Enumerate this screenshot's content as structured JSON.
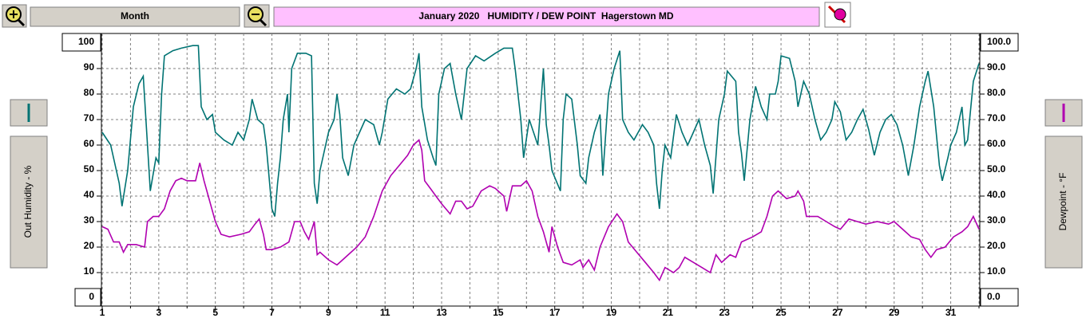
{
  "ui": {
    "range_button": "Month"
  },
  "chart_data": {
    "type": "line",
    "title": "January 2020   HUMIDITY / DEW POINT  Hagerstown MD",
    "y_label": "Out Humidity - %",
    "y2_label": "Dewpoint - °F",
    "xlim": [
      1,
      32
    ],
    "xticks": [
      1,
      3,
      5,
      7,
      9,
      11,
      13,
      15,
      17,
      19,
      21,
      23,
      25,
      27,
      29,
      31
    ],
    "x_minor_ticks": [
      2,
      4,
      6,
      8,
      10,
      12,
      14,
      16,
      18,
      20,
      22,
      24,
      26,
      28,
      30,
      32
    ],
    "ylim": [
      0,
      100
    ],
    "yticks": [
      0,
      10,
      20,
      30,
      40,
      50,
      60,
      70,
      80,
      90,
      100
    ],
    "y2lim": [
      0,
      100
    ],
    "y2ticks": [
      {
        "value": 0,
        "label": "0.0"
      },
      {
        "value": 10,
        "label": "10.0"
      },
      {
        "value": 20,
        "label": "20.0"
      },
      {
        "value": 30,
        "label": "30.0"
      },
      {
        "value": 40,
        "label": "40.0"
      },
      {
        "value": 50,
        "label": "50.0"
      },
      {
        "value": 60,
        "label": "60.0"
      },
      {
        "value": 70,
        "label": "70.0"
      },
      {
        "value": 80,
        "label": "80.0"
      },
      {
        "value": 90,
        "label": "90.0"
      },
      {
        "value": 100,
        "label": "100.0"
      }
    ],
    "grid": true,
    "series": [
      {
        "name": "Out Humidity",
        "color": "#007373",
        "axis": "y",
        "x": [
          1.0,
          1.3,
          1.6,
          1.7,
          1.9,
          2.1,
          2.3,
          2.45,
          2.6,
          2.7,
          2.9,
          3.0,
          3.1,
          3.2,
          3.5,
          3.8,
          4.2,
          4.4,
          4.5,
          4.7,
          4.9,
          5.0,
          5.3,
          5.6,
          5.8,
          6.0,
          6.2,
          6.3,
          6.5,
          6.7,
          6.8,
          7.0,
          7.1,
          7.2,
          7.3,
          7.4,
          7.55,
          7.6,
          7.7,
          7.9,
          8.2,
          8.4,
          8.5,
          8.6,
          8.7,
          8.9,
          9.0,
          9.2,
          9.3,
          9.4,
          9.5,
          9.7,
          9.9,
          10.1,
          10.3,
          10.6,
          10.8,
          10.9,
          11.1,
          11.4,
          11.7,
          11.9,
          12.1,
          12.2,
          12.3,
          12.5,
          12.7,
          12.8,
          12.9,
          13.1,
          13.3,
          13.5,
          13.7,
          13.9,
          14.2,
          14.5,
          14.9,
          15.2,
          15.5,
          15.6,
          15.8,
          15.9,
          16.1,
          16.4,
          16.6,
          16.7,
          16.8,
          16.9,
          17.2,
          17.3,
          17.4,
          17.6,
          17.8,
          17.9,
          18.1,
          18.2,
          18.4,
          18.6,
          18.7,
          18.9,
          19.1,
          19.3,
          19.4,
          19.6,
          19.8,
          20.1,
          20.3,
          20.5,
          20.6,
          20.7,
          20.8,
          20.9,
          21.1,
          21.3,
          21.5,
          21.7,
          21.9,
          22.1,
          22.3,
          22.5,
          22.6,
          22.8,
          23.0,
          23.1,
          23.4,
          23.5,
          23.6,
          23.7,
          23.9,
          24.1,
          24.3,
          24.5,
          24.6,
          24.8,
          24.9,
          25.0,
          25.3,
          25.5,
          25.6,
          25.8,
          26.0,
          26.2,
          26.4,
          26.6,
          26.8,
          26.9,
          27.1,
          27.3,
          27.5,
          27.7,
          27.9,
          28.1,
          28.3,
          28.5,
          28.7,
          28.9,
          29.1,
          29.3,
          29.5,
          29.7,
          29.9,
          30.1,
          30.2,
          30.4,
          30.6,
          30.7,
          30.9,
          31.0,
          31.2,
          31.4,
          31.5,
          31.6,
          31.8,
          32.0
        ],
        "values": [
          65,
          60,
          45,
          36,
          50,
          75,
          84,
          87,
          60,
          42,
          55,
          53,
          80,
          95,
          97,
          98,
          99,
          99,
          75,
          70,
          72,
          65,
          62,
          60,
          65,
          62,
          70,
          78,
          70,
          68,
          60,
          35,
          32,
          45,
          55,
          70,
          80,
          65,
          90,
          96,
          96,
          95,
          45,
          37,
          50,
          60,
          65,
          70,
          80,
          72,
          55,
          48,
          60,
          65,
          70,
          68,
          60,
          65,
          78,
          82,
          80,
          82,
          90,
          96,
          75,
          62,
          55,
          52,
          80,
          90,
          92,
          80,
          70,
          90,
          95,
          93,
          96,
          98,
          98,
          90,
          70,
          55,
          70,
          60,
          90,
          68,
          60,
          50,
          42,
          70,
          80,
          78,
          60,
          48,
          45,
          55,
          65,
          72,
          48,
          80,
          90,
          97,
          70,
          65,
          62,
          68,
          65,
          60,
          45,
          35,
          50,
          60,
          55,
          72,
          65,
          60,
          65,
          70,
          60,
          52,
          41,
          70,
          80,
          89,
          85,
          65,
          57,
          46,
          70,
          83,
          75,
          70,
          80,
          80,
          85,
          95,
          94,
          85,
          75,
          85,
          80,
          70,
          62,
          65,
          70,
          77,
          73,
          62,
          65,
          70,
          74,
          66,
          56,
          65,
          70,
          72,
          68,
          60,
          48,
          60,
          75,
          85,
          89,
          75,
          52,
          46,
          55,
          60,
          65,
          75,
          60,
          62,
          85,
          92
        ]
      },
      {
        "name": "Dewpoint",
        "color": "#b000b0",
        "axis": "y2",
        "x": [
          1.0,
          1.2,
          1.4,
          1.6,
          1.75,
          1.9,
          2.2,
          2.5,
          2.6,
          2.8,
          3.0,
          3.2,
          3.4,
          3.6,
          3.8,
          4.0,
          4.3,
          4.45,
          4.6,
          4.8,
          5.0,
          5.2,
          5.5,
          5.9,
          6.2,
          6.4,
          6.55,
          6.7,
          6.8,
          7.0,
          7.3,
          7.6,
          7.8,
          8.0,
          8.15,
          8.3,
          8.5,
          8.6,
          8.7,
          9.0,
          9.3,
          9.5,
          9.7,
          10.0,
          10.3,
          10.6,
          10.9,
          11.2,
          11.5,
          11.8,
          12.0,
          12.2,
          12.3,
          12.4,
          12.6,
          12.8,
          13.0,
          13.3,
          13.5,
          13.7,
          13.9,
          14.1,
          14.4,
          14.7,
          14.9,
          15.2,
          15.3,
          15.5,
          15.8,
          16.0,
          16.2,
          16.4,
          16.6,
          16.8,
          16.9,
          17.1,
          17.3,
          17.6,
          17.9,
          18.0,
          18.2,
          18.4,
          18.6,
          18.9,
          19.2,
          19.4,
          19.6,
          19.9,
          20.2,
          20.5,
          20.7,
          20.9,
          21.2,
          21.4,
          21.6,
          21.9,
          22.2,
          22.5,
          22.7,
          22.9,
          23.2,
          23.4,
          23.6,
          24.0,
          24.3,
          24.5,
          24.7,
          24.9,
          25.2,
          25.5,
          25.6,
          25.8,
          25.9,
          26.3,
          26.6,
          26.9,
          27.1,
          27.4,
          27.7,
          28.0,
          28.4,
          28.8,
          29.0,
          29.3,
          29.6,
          29.9,
          30.1,
          30.3,
          30.5,
          30.8,
          31.1,
          31.4,
          31.6,
          31.8,
          32.0
        ],
        "values": [
          28,
          27,
          22,
          22,
          18,
          21,
          21,
          20,
          30,
          32,
          32,
          35,
          42,
          46,
          47,
          46,
          46,
          53,
          46,
          38,
          30,
          25,
          24,
          25,
          26,
          29,
          31,
          25,
          19,
          19,
          20,
          22,
          30,
          30,
          26,
          23,
          30,
          17,
          18,
          15,
          13,
          15,
          17,
          20,
          24,
          32,
          42,
          48,
          52,
          56,
          60,
          62,
          58,
          46,
          43,
          40,
          37,
          33,
          38,
          38,
          35,
          36,
          42,
          44,
          43,
          40,
          34,
          44,
          44,
          46,
          42,
          32,
          26,
          18,
          28,
          20,
          14,
          13,
          15,
          12,
          15,
          11,
          20,
          28,
          33,
          30,
          22,
          18,
          14,
          10,
          7,
          12,
          10,
          12,
          16,
          14,
          12,
          10,
          17,
          14,
          17,
          16,
          22,
          24,
          26,
          32,
          40,
          42,
          39,
          40,
          42,
          38,
          32,
          32,
          30,
          28,
          27,
          31,
          30,
          29,
          30,
          29,
          30,
          27,
          24,
          23,
          19,
          16,
          19,
          20,
          24,
          26,
          28,
          32,
          27
        ]
      }
    ]
  }
}
